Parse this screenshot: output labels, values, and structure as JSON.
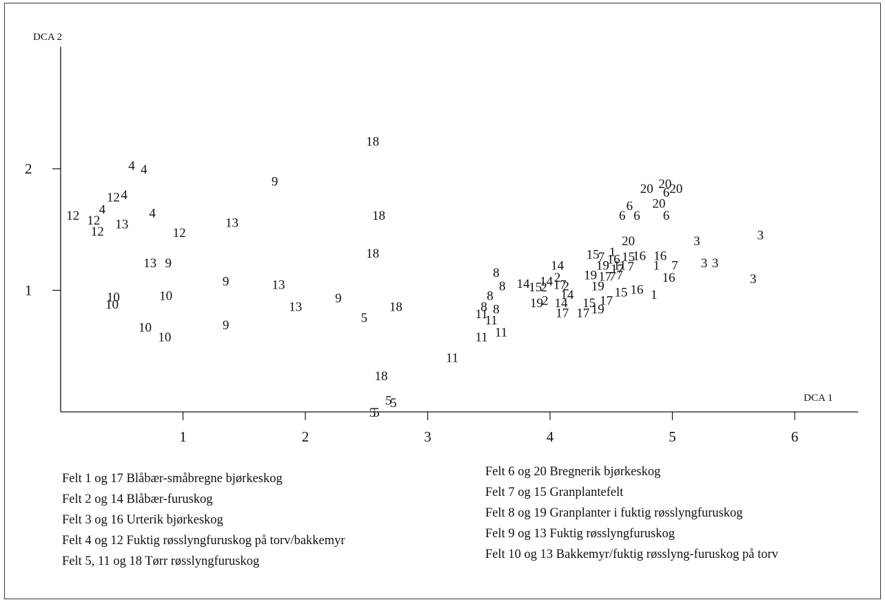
{
  "chart_data": {
    "type": "scatter",
    "xlabel": "DCA 1",
    "ylabel": "DCA 2",
    "xlim": [
      0,
      6.5
    ],
    "ylim": [
      0,
      2.95
    ],
    "xticks": [
      1,
      2,
      3,
      4,
      5,
      6
    ],
    "yticks": [
      1,
      2
    ],
    "grid": false,
    "legend_position": "bottom",
    "points": [
      {
        "label": "18",
        "x": 2.55,
        "y": 2.23
      },
      {
        "label": "4",
        "x": 0.58,
        "y": 2.03
      },
      {
        "label": "4",
        "x": 0.68,
        "y": 2.0
      },
      {
        "label": "9",
        "x": 1.75,
        "y": 1.9
      },
      {
        "label": "12",
        "x": 0.43,
        "y": 1.77
      },
      {
        "label": "4",
        "x": 0.52,
        "y": 1.79
      },
      {
        "label": "4",
        "x": 0.34,
        "y": 1.67
      },
      {
        "label": "4",
        "x": 0.75,
        "y": 1.64
      },
      {
        "label": "12",
        "x": 0.1,
        "y": 1.62
      },
      {
        "label": "12",
        "x": 0.27,
        "y": 1.58
      },
      {
        "label": "13",
        "x": 0.5,
        "y": 1.55
      },
      {
        "label": "13",
        "x": 1.4,
        "y": 1.56
      },
      {
        "label": "18",
        "x": 2.6,
        "y": 1.62
      },
      {
        "label": "12",
        "x": 0.3,
        "y": 1.49
      },
      {
        "label": "12",
        "x": 0.97,
        "y": 1.48
      },
      {
        "label": "18",
        "x": 2.55,
        "y": 1.31
      },
      {
        "label": "13",
        "x": 0.73,
        "y": 1.23
      },
      {
        "label": "9",
        "x": 0.88,
        "y": 1.23
      },
      {
        "label": "9",
        "x": 1.35,
        "y": 1.08
      },
      {
        "label": "13",
        "x": 1.78,
        "y": 1.05
      },
      {
        "label": "9",
        "x": 2.27,
        "y": 0.94
      },
      {
        "label": "13",
        "x": 1.92,
        "y": 0.87
      },
      {
        "label": "10",
        "x": 0.43,
        "y": 0.95
      },
      {
        "label": "10",
        "x": 0.86,
        "y": 0.96
      },
      {
        "label": "10",
        "x": 0.42,
        "y": 0.89
      },
      {
        "label": "5",
        "x": 2.48,
        "y": 0.78
      },
      {
        "label": "18",
        "x": 2.74,
        "y": 0.87
      },
      {
        "label": "9",
        "x": 1.35,
        "y": 0.72
      },
      {
        "label": "10",
        "x": 0.69,
        "y": 0.7
      },
      {
        "label": "10",
        "x": 0.85,
        "y": 0.62
      },
      {
        "label": "11",
        "x": 3.2,
        "y": 0.45
      },
      {
        "label": "18",
        "x": 2.62,
        "y": 0.3
      },
      {
        "label": "5",
        "x": 2.68,
        "y": 0.1
      },
      {
        "label": "5",
        "x": 2.72,
        "y": 0.08
      },
      {
        "label": "5",
        "x": 2.55,
        "y": 0.0
      },
      {
        "label": "5",
        "x": 2.58,
        "y": 0.0
      },
      {
        "label": "11",
        "x": 3.44,
        "y": 0.62
      },
      {
        "label": "11",
        "x": 3.6,
        "y": 0.66
      },
      {
        "label": "11",
        "x": 3.52,
        "y": 0.76
      },
      {
        "label": "11",
        "x": 3.44,
        "y": 0.81
      },
      {
        "label": "8",
        "x": 3.46,
        "y": 0.87
      },
      {
        "label": "8",
        "x": 3.56,
        "y": 0.85
      },
      {
        "label": "8",
        "x": 3.51,
        "y": 0.96
      },
      {
        "label": "8",
        "x": 3.61,
        "y": 1.04
      },
      {
        "label": "8",
        "x": 3.56,
        "y": 1.15
      },
      {
        "label": "14",
        "x": 3.78,
        "y": 1.06
      },
      {
        "label": "15",
        "x": 3.88,
        "y": 1.03
      },
      {
        "label": "2",
        "x": 3.95,
        "y": 1.03
      },
      {
        "label": "14",
        "x": 3.97,
        "y": 1.08
      },
      {
        "label": "2",
        "x": 4.06,
        "y": 1.11
      },
      {
        "label": "14",
        "x": 4.06,
        "y": 1.21
      },
      {
        "label": "17",
        "x": 4.08,
        "y": 1.05
      },
      {
        "label": "2",
        "x": 4.13,
        "y": 1.04
      },
      {
        "label": "19",
        "x": 3.89,
        "y": 0.9
      },
      {
        "label": "2",
        "x": 3.96,
        "y": 0.92
      },
      {
        "label": "14",
        "x": 4.09,
        "y": 0.9
      },
      {
        "label": "14",
        "x": 4.14,
        "y": 0.97
      },
      {
        "label": "17",
        "x": 4.1,
        "y": 0.82
      },
      {
        "label": "17",
        "x": 4.27,
        "y": 0.82
      },
      {
        "label": "15",
        "x": 4.32,
        "y": 0.9
      },
      {
        "label": "19",
        "x": 4.39,
        "y": 0.85
      },
      {
        "label": "17",
        "x": 4.46,
        "y": 0.92
      },
      {
        "label": "15",
        "x": 4.58,
        "y": 0.99
      },
      {
        "label": "16",
        "x": 4.71,
        "y": 1.01
      },
      {
        "label": "1",
        "x": 4.85,
        "y": 0.97
      },
      {
        "label": "19",
        "x": 4.39,
        "y": 1.04
      },
      {
        "label": "19",
        "x": 4.33,
        "y": 1.13
      },
      {
        "label": "17",
        "x": 4.45,
        "y": 1.12
      },
      {
        "label": "7",
        "x": 4.51,
        "y": 1.12
      },
      {
        "label": "7",
        "x": 4.57,
        "y": 1.13
      },
      {
        "label": "15",
        "x": 4.35,
        "y": 1.3
      },
      {
        "label": "7",
        "x": 4.42,
        "y": 1.28
      },
      {
        "label": "19",
        "x": 4.43,
        "y": 1.21
      },
      {
        "label": "1",
        "x": 4.51,
        "y": 1.32
      },
      {
        "label": "16",
        "x": 4.52,
        "y": 1.26
      },
      {
        "label": "11",
        "x": 4.57,
        "y": 1.21
      },
      {
        "label": "17",
        "x": 4.55,
        "y": 1.18
      },
      {
        "label": "7",
        "x": 4.66,
        "y": 1.2
      },
      {
        "label": "15",
        "x": 4.64,
        "y": 1.28
      },
      {
        "label": "16",
        "x": 4.73,
        "y": 1.29
      },
      {
        "label": "20",
        "x": 4.64,
        "y": 1.41
      },
      {
        "label": "16",
        "x": 4.9,
        "y": 1.29
      },
      {
        "label": "1",
        "x": 4.87,
        "y": 1.21
      },
      {
        "label": "7",
        "x": 5.02,
        "y": 1.21
      },
      {
        "label": "16",
        "x": 4.97,
        "y": 1.11
      },
      {
        "label": "6",
        "x": 4.59,
        "y": 1.62
      },
      {
        "label": "6",
        "x": 4.65,
        "y": 1.7
      },
      {
        "label": "6",
        "x": 4.71,
        "y": 1.62
      },
      {
        "label": "6",
        "x": 4.95,
        "y": 1.62
      },
      {
        "label": "20",
        "x": 4.79,
        "y": 1.84
      },
      {
        "label": "20",
        "x": 4.89,
        "y": 1.72
      },
      {
        "label": "20",
        "x": 4.94,
        "y": 1.88
      },
      {
        "label": "6",
        "x": 4.95,
        "y": 1.81
      },
      {
        "label": "20",
        "x": 5.03,
        "y": 1.84
      },
      {
        "label": "3",
        "x": 5.2,
        "y": 1.41
      },
      {
        "label": "3",
        "x": 5.26,
        "y": 1.23
      },
      {
        "label": "3",
        "x": 5.35,
        "y": 1.23
      },
      {
        "label": "3",
        "x": 5.72,
        "y": 1.46
      },
      {
        "label": "3",
        "x": 5.66,
        "y": 1.1
      }
    ],
    "legend_left": [
      "Felt 1 og 17 Blåbær-småbregne bjørkeskog",
      "Felt 2 og 14 Blåbær-furuskog",
      "Felt 3 og 16 Urterik bjørkeskog",
      "Felt 4 og 12 Fuktig røsslyngfuruskog på torv/bakkemyr",
      "Felt 5, 11 og 18 Tørr røsslyngfuruskog"
    ],
    "legend_right": [
      "Felt 6 og 20 Bregnerik bjørkeskog",
      "Felt 7 og 15 Granplantefelt",
      "Felt 8 og 19 Granplanter i fuktig røsslyngfuruskog",
      "Felt 9 og 13 Fuktig røsslyngfuruskog",
      "Felt 10 og 13 Bakkemyr/fuktig røsslyng-furuskog på torv"
    ]
  }
}
